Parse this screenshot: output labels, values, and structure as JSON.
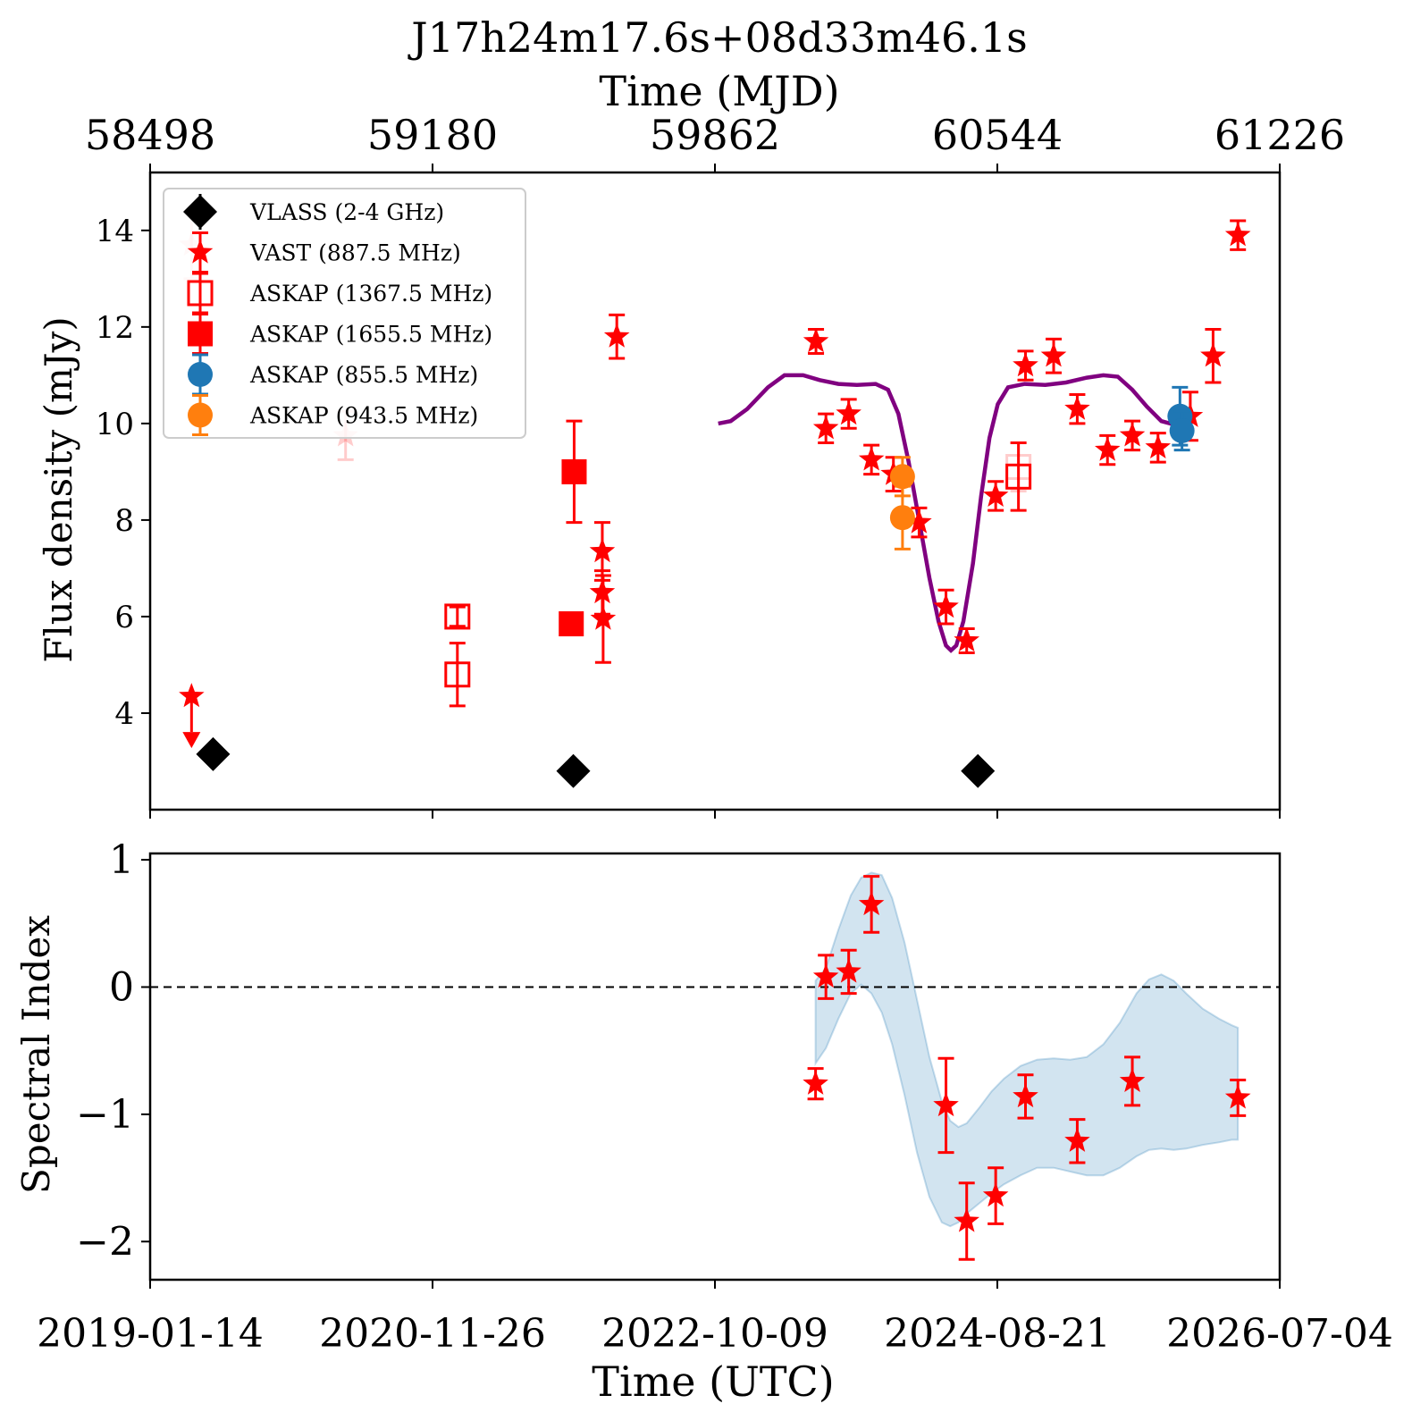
{
  "figure": {
    "title": "J17h24m17.6s+08d33m46.1s",
    "top_axis_label": "Time (MJD)",
    "bottom_axis_label": "Time (UTC)"
  },
  "chart_data": [
    {
      "type": "scatter",
      "panel": "light-curve",
      "ylabel": "Flux density (mJy)",
      "xlim_mjd": [
        58498,
        61226
      ],
      "ylim": [
        2.0,
        15.2
      ],
      "yticks": [
        4,
        6,
        8,
        10,
        12,
        14
      ],
      "top_xticks": [
        "58498",
        "59180",
        "59862",
        "60544",
        "61226"
      ],
      "legend_position": "upper-left",
      "series": [
        {
          "name": "VLASS (2-4 GHz)",
          "marker": "diamond",
          "color": "#000000",
          "points": [
            {
              "mjd": 58650,
              "y": 3.15
            },
            {
              "mjd": 59520,
              "y": 2.8
            },
            {
              "mjd": 60497,
              "y": 2.8
            }
          ]
        },
        {
          "name": "VAST (887.5 MHz)",
          "marker": "star",
          "color": "#ff0000",
          "points": [
            {
              "mjd": 58598,
              "y": 13.7,
              "err": 0.7,
              "faded": true
            },
            {
              "mjd": 58598,
              "y": 4.35,
              "upper_limit": true
            },
            {
              "mjd": 58970,
              "y": 9.75,
              "err": 0.5,
              "faded": true
            },
            {
              "mjd": 59590,
              "y": 7.35,
              "err": 0.6
            },
            {
              "mjd": 59590,
              "y": 6.5,
              "err": 0.45
            },
            {
              "mjd": 59592,
              "y": 5.95,
              "err": 0.9
            },
            {
              "mjd": 59625,
              "y": 11.8,
              "err": 0.45
            },
            {
              "mjd": 60106,
              "y": 11.7,
              "err": 0.25
            },
            {
              "mjd": 60130,
              "y": 9.9,
              "err": 0.3
            },
            {
              "mjd": 60185,
              "y": 10.2,
              "err": 0.3
            },
            {
              "mjd": 60240,
              "y": 9.25,
              "err": 0.3
            },
            {
              "mjd": 60293,
              "y": 8.95,
              "err": 0.35
            },
            {
              "mjd": 60355,
              "y": 7.95,
              "err": 0.3
            },
            {
              "mjd": 60420,
              "y": 6.2,
              "err": 0.35
            },
            {
              "mjd": 60470,
              "y": 5.5,
              "err": 0.25
            },
            {
              "mjd": 60540,
              "y": 8.5,
              "err": 0.3
            },
            {
              "mjd": 60612,
              "y": 11.2,
              "err": 0.3
            },
            {
              "mjd": 60680,
              "y": 11.4,
              "err": 0.35
            },
            {
              "mjd": 60737,
              "y": 10.3,
              "err": 0.3
            },
            {
              "mjd": 60810,
              "y": 9.45,
              "err": 0.3
            },
            {
              "mjd": 60870,
              "y": 9.75,
              "err": 0.3
            },
            {
              "mjd": 60932,
              "y": 9.5,
              "err": 0.3
            },
            {
              "mjd": 61010,
              "y": 10.15,
              "err": 0.5
            },
            {
              "mjd": 61065,
              "y": 11.4,
              "err": 0.55
            },
            {
              "mjd": 61125,
              "y": 13.9,
              "err": 0.3
            }
          ]
        },
        {
          "name": "ASKAP (1367.5 MHz)",
          "marker": "open-square",
          "color": "#ff0000",
          "points": [
            {
              "mjd": 59240,
              "y": 6.0,
              "err": 0.2
            },
            {
              "mjd": 59240,
              "y": 4.8,
              "err": 0.65
            },
            {
              "mjd": 60595,
              "y": 9.1,
              "err": 0.5,
              "faded": true
            },
            {
              "mjd": 60595,
              "y": 8.9,
              "err": 0.7
            }
          ]
        },
        {
          "name": "ASKAP (1655.5 MHz)",
          "marker": "filled-square",
          "color": "#ff0000",
          "points": [
            {
              "mjd": 59515,
              "y": 5.85
            },
            {
              "mjd": 59522,
              "y": 9.0,
              "err": 1.05
            }
          ]
        },
        {
          "name": "ASKAP (855.5 MHz)",
          "marker": "circle",
          "color": "#1f77b4",
          "points": [
            {
              "mjd": 60985,
              "y": 10.15,
              "err": 0.6
            },
            {
              "mjd": 60990,
              "y": 9.85,
              "err": 0.4
            }
          ]
        },
        {
          "name": "ASKAP (943.5 MHz)",
          "marker": "circle",
          "color": "#ff7f0e",
          "points": [
            {
              "mjd": 60315,
              "y": 8.9,
              "err": 0.4
            },
            {
              "mjd": 60315,
              "y": 8.05,
              "err": 0.65
            }
          ]
        }
      ],
      "model_curve": {
        "color": "#800080",
        "points": [
          [
            59870,
            10.0
          ],
          [
            59900,
            10.05
          ],
          [
            59940,
            10.3
          ],
          [
            59990,
            10.75
          ],
          [
            60030,
            11.0
          ],
          [
            60075,
            11.0
          ],
          [
            60115,
            10.9
          ],
          [
            60160,
            10.82
          ],
          [
            60205,
            10.8
          ],
          [
            60250,
            10.82
          ],
          [
            60280,
            10.7
          ],
          [
            60305,
            10.2
          ],
          [
            60330,
            9.2
          ],
          [
            60355,
            8.0
          ],
          [
            60380,
            6.8
          ],
          [
            60402,
            5.9
          ],
          [
            60420,
            5.4
          ],
          [
            60432,
            5.3
          ],
          [
            60445,
            5.4
          ],
          [
            60462,
            5.9
          ],
          [
            60485,
            7.1
          ],
          [
            60505,
            8.5
          ],
          [
            60525,
            9.7
          ],
          [
            60545,
            10.4
          ],
          [
            60570,
            10.75
          ],
          [
            60610,
            10.82
          ],
          [
            60660,
            10.8
          ],
          [
            60710,
            10.85
          ],
          [
            60760,
            10.95
          ],
          [
            60800,
            11.0
          ],
          [
            60835,
            10.97
          ],
          [
            60870,
            10.7
          ],
          [
            60905,
            10.35
          ],
          [
            60940,
            10.05
          ],
          [
            60970,
            9.98
          ],
          [
            61000,
            10.0
          ],
          [
            61020,
            10.05
          ]
        ]
      }
    },
    {
      "type": "scatter",
      "panel": "spectral-index",
      "ylabel": "Spectral Index",
      "ylim": [
        -2.3,
        1.05
      ],
      "yticks": [
        1,
        0,
        -1,
        -2
      ],
      "ytick_labels": [
        "1",
        "0",
        "−1",
        "−2"
      ],
      "xticks": [
        "2019-01-14",
        "2020-11-26",
        "2022-10-09",
        "2024-08-21",
        "2026-07-04"
      ],
      "reference_line": {
        "y": 0,
        "style": "dashed",
        "color": "#000000"
      },
      "band_color": "#1f77b4",
      "band": [
        [
          60105,
          -0.6,
          0.05
        ],
        [
          60130,
          -0.48,
          0.15
        ],
        [
          60160,
          -0.25,
          0.45
        ],
        [
          60190,
          -0.05,
          0.72
        ],
        [
          60215,
          0.02,
          0.86
        ],
        [
          60240,
          -0.05,
          0.9
        ],
        [
          60265,
          -0.2,
          0.88
        ],
        [
          60290,
          -0.45,
          0.7
        ],
        [
          60320,
          -0.85,
          0.35
        ],
        [
          60350,
          -1.3,
          -0.1
        ],
        [
          60380,
          -1.65,
          -0.55
        ],
        [
          60410,
          -1.85,
          -0.9
        ],
        [
          60430,
          -1.88,
          -1.05
        ],
        [
          60450,
          -1.85,
          -1.1
        ],
        [
          60470,
          -1.78,
          -1.07
        ],
        [
          60500,
          -1.7,
          -0.95
        ],
        [
          60530,
          -1.62,
          -0.82
        ],
        [
          60560,
          -1.55,
          -0.72
        ],
        [
          60600,
          -1.48,
          -0.62
        ],
        [
          60640,
          -1.42,
          -0.57
        ],
        [
          60680,
          -1.42,
          -0.56
        ],
        [
          60720,
          -1.45,
          -0.57
        ],
        [
          60760,
          -1.48,
          -0.55
        ],
        [
          60800,
          -1.48,
          -0.45
        ],
        [
          60840,
          -1.42,
          -0.28
        ],
        [
          60880,
          -1.33,
          -0.05
        ],
        [
          60910,
          -1.28,
          0.06
        ],
        [
          60940,
          -1.27,
          0.1
        ],
        [
          60970,
          -1.28,
          0.05
        ],
        [
          61000,
          -1.27,
          -0.05
        ],
        [
          61040,
          -1.24,
          -0.17
        ],
        [
          61080,
          -1.22,
          -0.25
        ],
        [
          61110,
          -1.2,
          -0.3
        ],
        [
          61125,
          -1.2,
          -0.32
        ]
      ],
      "series": [
        {
          "name": "",
          "marker": "star",
          "color": "#ff0000",
          "points": [
            {
              "mjd": 60105,
              "y": -0.76,
              "err": 0.12
            },
            {
              "mjd": 60130,
              "y": 0.08,
              "err": 0.17
            },
            {
              "mjd": 60185,
              "y": 0.12,
              "err": 0.17
            },
            {
              "mjd": 60240,
              "y": 0.65,
              "err": 0.22
            },
            {
              "mjd": 60420,
              "y": -0.93,
              "err": 0.37
            },
            {
              "mjd": 60470,
              "y": -1.84,
              "err": 0.3
            },
            {
              "mjd": 60540,
              "y": -1.64,
              "err": 0.22
            },
            {
              "mjd": 60612,
              "y": -0.86,
              "err": 0.17
            },
            {
              "mjd": 60737,
              "y": -1.21,
              "err": 0.17
            },
            {
              "mjd": 60870,
              "y": -0.74,
              "err": 0.19
            },
            {
              "mjd": 61125,
              "y": -0.87,
              "err": 0.14
            }
          ]
        }
      ]
    }
  ]
}
